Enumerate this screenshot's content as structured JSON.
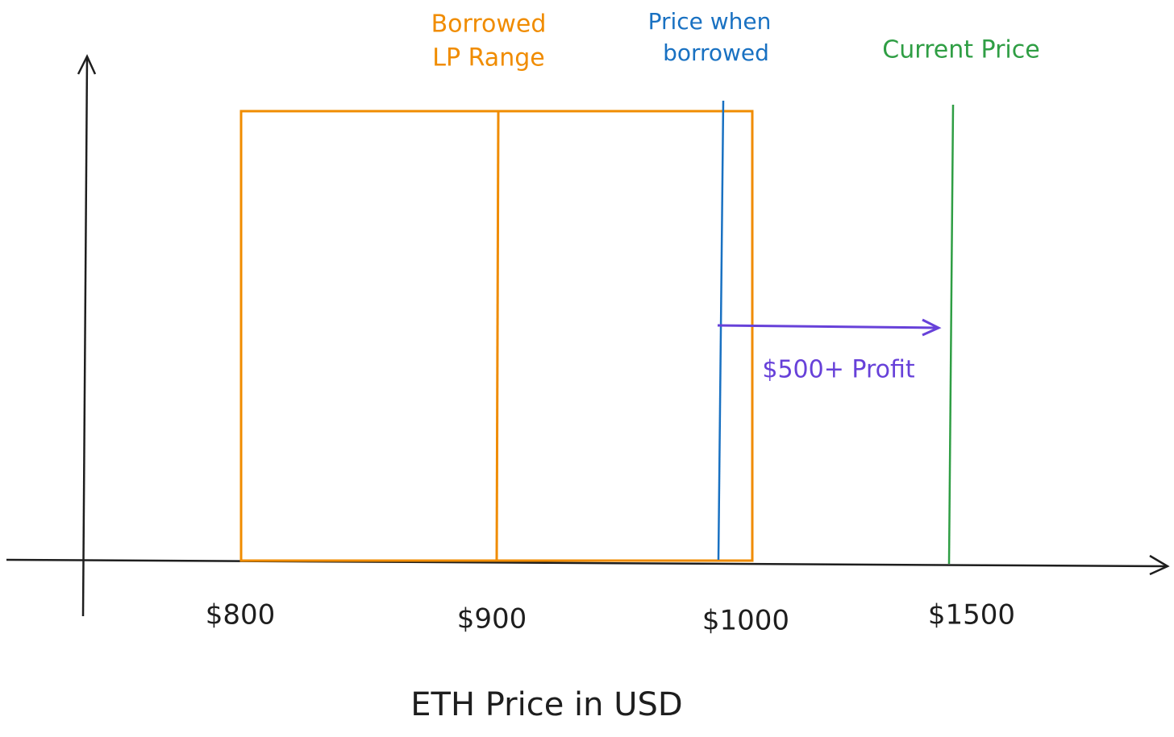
{
  "annotations": {
    "lp_range": [
      "Borrowed",
      "LP Range"
    ],
    "borrow_price": [
      "Price when",
      "borrowed"
    ],
    "current_price": "Current Price",
    "profit": "$500+ Profit"
  },
  "x_axis": {
    "tick_labels": [
      "$800",
      "$900",
      "$1000",
      "$1500"
    ],
    "label": "ETH Price in USD"
  }
}
